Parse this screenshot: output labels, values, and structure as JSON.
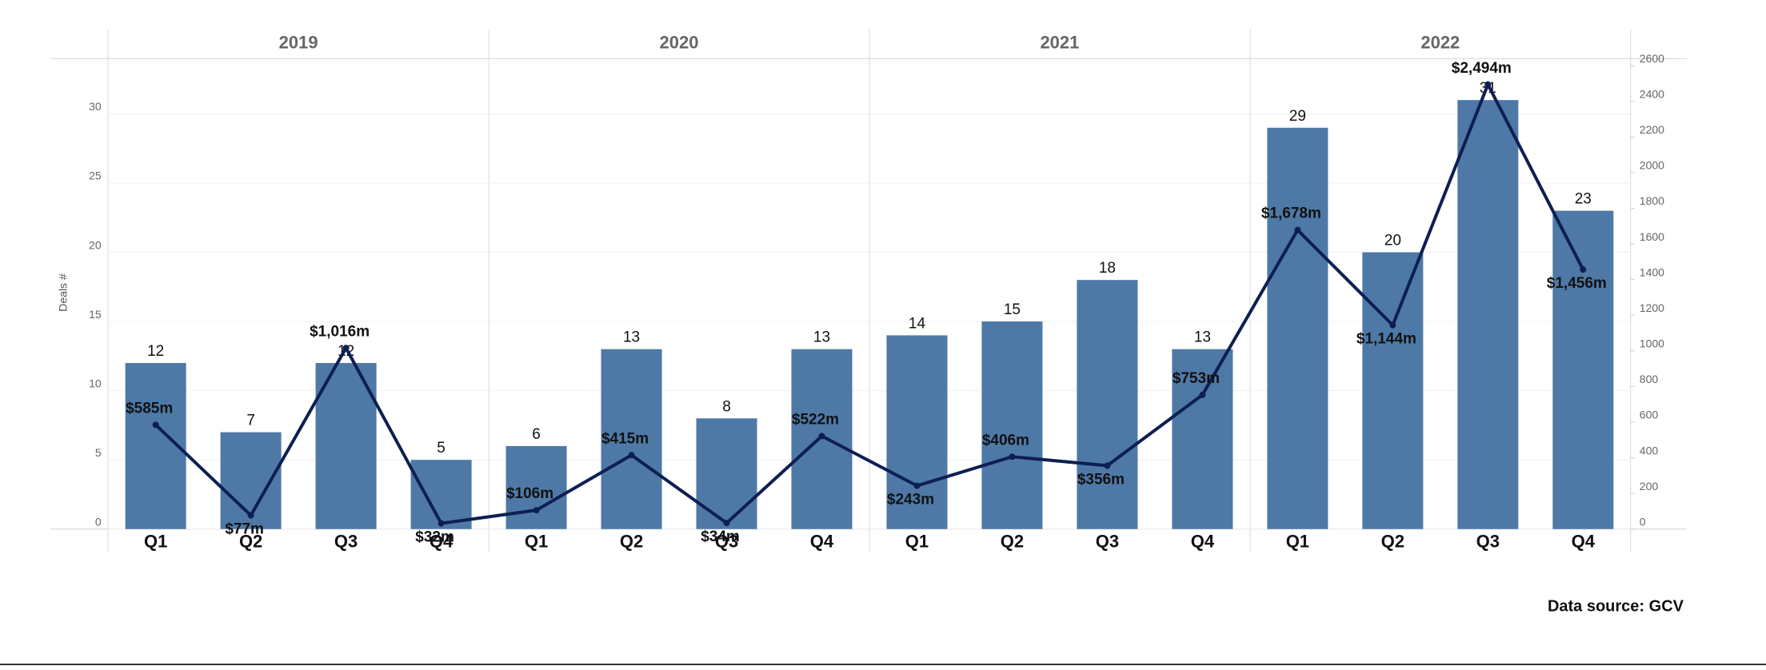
{
  "chart_data": {
    "type": "bar-line",
    "y_label": "Deals #",
    "source": "Data source: GCV",
    "groups": [
      "2019",
      "2020",
      "2021",
      "2022"
    ],
    "categories": [
      "Q1",
      "Q2",
      "Q3",
      "Q4",
      "Q1",
      "Q2",
      "Q3",
      "Q4",
      "Q1",
      "Q2",
      "Q3",
      "Q4",
      "Q1",
      "Q2",
      "Q3",
      "Q4"
    ],
    "series": [
      {
        "name": "Deals",
        "type": "bar",
        "color": "#4e79a7",
        "values": [
          12,
          7,
          12,
          5,
          6,
          13,
          8,
          13,
          14,
          15,
          18,
          13,
          29,
          20,
          31,
          23
        ]
      },
      {
        "name": "Amount",
        "type": "line",
        "axis": "y2",
        "color": "#0d1f52",
        "values": [
          585,
          77,
          1016,
          32,
          106,
          415,
          34,
          522,
          243,
          406,
          356,
          753,
          1678,
          1144,
          2494,
          1456
        ],
        "value_labels": [
          "$585m",
          "$77m",
          "$1,016m",
          "$32m",
          "$106m",
          "$415m",
          "$34m",
          "$522m",
          "$243m",
          "$406m",
          "$356m",
          "$753m",
          "$1,678m",
          "$1,144m",
          "$2,494m",
          "$1,456m"
        ]
      }
    ],
    "ylim": [
      0,
      34
    ],
    "yticks": [
      0,
      5,
      10,
      15,
      20,
      25,
      30
    ],
    "y2lim": [
      0,
      2640
    ],
    "y2ticks": [
      0,
      200,
      400,
      600,
      800,
      1000,
      1200,
      1400,
      1600,
      1800,
      2000,
      2200,
      2400,
      2600
    ],
    "grid": true
  }
}
